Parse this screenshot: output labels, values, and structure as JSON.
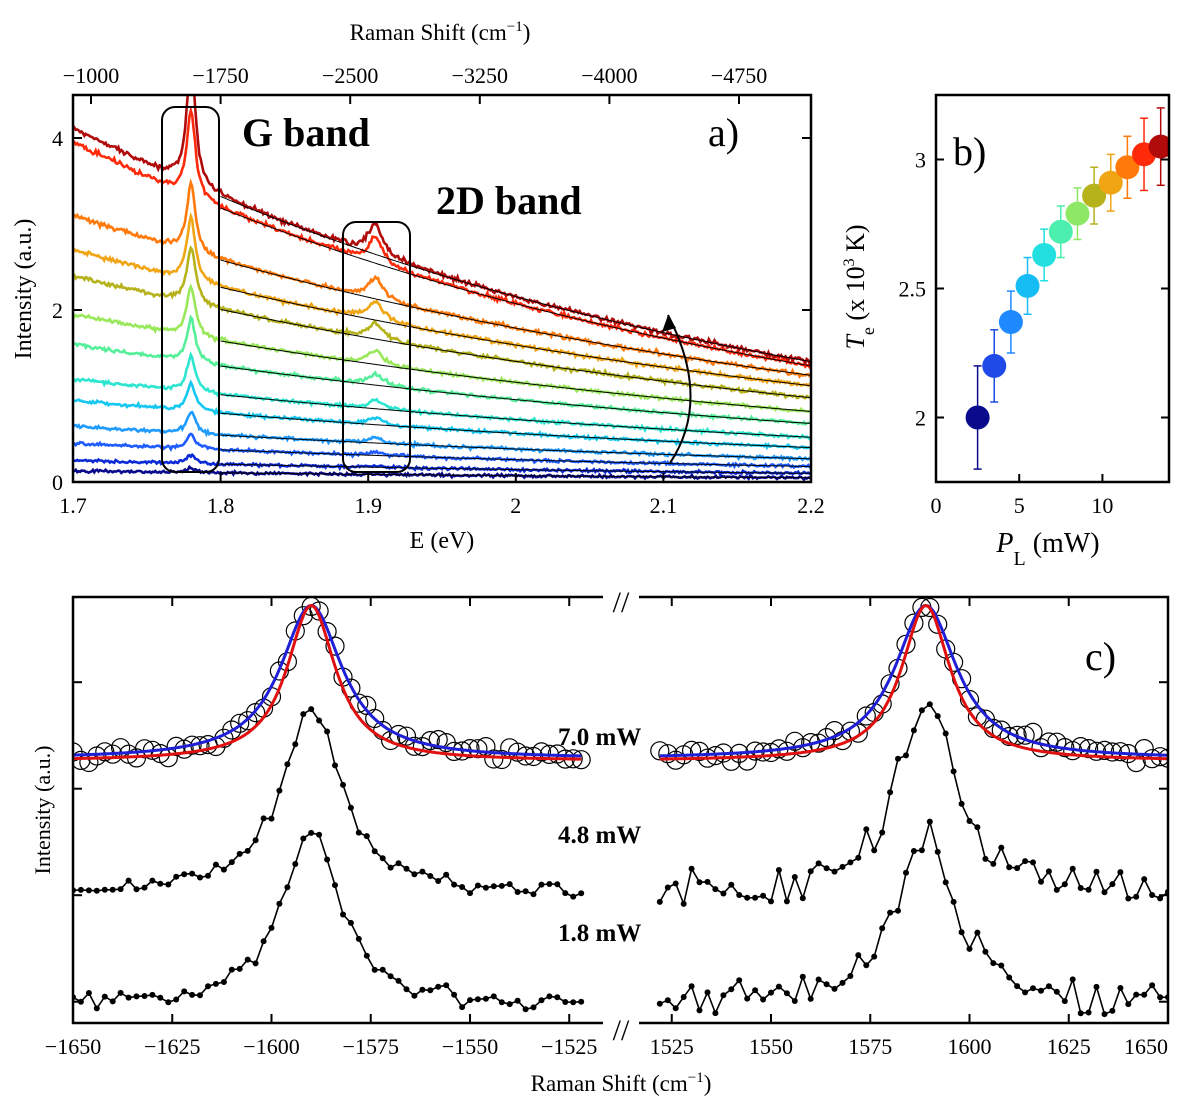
{
  "chart_data": [
    {
      "id": "a",
      "type": "line",
      "panel_label": "a)",
      "xlabel": "E (eV)",
      "ylabel": "Intensity (a.u.)",
      "top_xlabel": "Raman Shift (cm",
      "top_xlabel_sup": "−1",
      "top_xlabel_end": ")",
      "xlim": [
        1.7,
        2.2
      ],
      "ylim": [
        0,
        4.5
      ],
      "xticks": [
        1.7,
        1.8,
        1.9,
        2.0,
        2.1,
        2.2
      ],
      "xtick_labels": [
        "1.7",
        "1.8",
        "1.9",
        "2",
        "2.1",
        "2.2"
      ],
      "yticks": [
        0,
        2,
        4
      ],
      "ytick_labels": [
        "0",
        "2",
        "4"
      ],
      "top_ticks": [
        -1000,
        -1750,
        -2500,
        -3250,
        -4000,
        -4750
      ],
      "top_tick_labels": [
        "−1000",
        "−1750",
        "−2500",
        "−3250",
        "−4000",
        "−4750"
      ],
      "annotations": [
        "G band",
        "2D band"
      ],
      "g_band_center_ev": 1.78,
      "d2_band_center_ev": 1.905,
      "series_colors": [
        "#0a0a8c",
        "#0b2ad6",
        "#1f5cff",
        "#1f9bff",
        "#16c8f0",
        "#2ee6d0",
        "#55ef9a",
        "#99e85a",
        "#b5b21c",
        "#f0a514",
        "#ff7a0a",
        "#ff2a0a",
        "#b00a0a"
      ],
      "series_intensity_at_1_7": [
        0.13,
        0.25,
        0.45,
        0.65,
        0.95,
        1.2,
        1.6,
        1.95,
        2.4,
        2.7,
        3.1,
        3.95,
        4.12
      ],
      "series_intensity_at_2_2": [
        0.05,
        0.1,
        0.18,
        0.27,
        0.4,
        0.52,
        0.68,
        0.82,
        0.98,
        1.12,
        1.24,
        1.35,
        1.4
      ],
      "g_peak_height": [
        0.05,
        0.1,
        0.17,
        0.25,
        0.33,
        0.42,
        0.5,
        0.58,
        0.66,
        0.73,
        0.8,
        1.0,
        1.45
      ],
      "d2_peak_height": [
        0.0,
        0.02,
        0.04,
        0.06,
        0.08,
        0.1,
        0.13,
        0.16,
        0.19,
        0.22,
        0.25,
        0.3,
        0.35
      ]
    },
    {
      "id": "b",
      "type": "scatter",
      "panel_label": "b)",
      "xlabel_italic": "P",
      "xlabel_sub": "L",
      "xlabel_rest": " (mW)",
      "ylabel_italic": "T",
      "ylabel_sub": "e",
      "ylabel_rest": " (x 10",
      "ylabel_sup": "3",
      "ylabel_end": " K)",
      "xlim": [
        0,
        14
      ],
      "ylim": [
        1.75,
        3.25
      ],
      "xticks": [
        0,
        5,
        10
      ],
      "xtick_labels": [
        "0",
        "5",
        "10"
      ],
      "yticks": [
        2,
        2.5,
        3
      ],
      "ytick_labels": [
        "2",
        "2.5",
        "3"
      ],
      "x": [
        2.5,
        3.5,
        4.5,
        5.5,
        6.5,
        7.5,
        8.5,
        9.5,
        10.5,
        11.5,
        12.5,
        13.5
      ],
      "y": [
        2.0,
        2.2,
        2.37,
        2.51,
        2.63,
        2.72,
        2.79,
        2.86,
        2.91,
        2.97,
        3.02,
        3.05
      ],
      "err": [
        0.2,
        0.14,
        0.12,
        0.11,
        0.1,
        0.1,
        0.1,
        0.11,
        0.11,
        0.12,
        0.14,
        0.15
      ],
      "colors": [
        "#0a0a8c",
        "#1f4ae8",
        "#1f8aff",
        "#16bdf5",
        "#22dfe0",
        "#4cefae",
        "#8de866",
        "#b5b21c",
        "#f0a514",
        "#ff7a0a",
        "#ff2a0a",
        "#b00a0a"
      ]
    },
    {
      "id": "c",
      "type": "line",
      "panel_label": "c)",
      "xlabel": "Raman Shift (cm",
      "xlabel_sup": "−1",
      "xlabel_end": ")",
      "ylabel": "Intensity (a.u.)",
      "break_mark": "//",
      "left_xlim": [
        -1650,
        -1517
      ],
      "right_xlim": [
        1517,
        1650
      ],
      "left_xticks": [
        -1650,
        -1625,
        -1600,
        -1575,
        -1550,
        -1525
      ],
      "left_xtick_labels": [
        "−1650",
        "−1625",
        "−1600",
        "−1575",
        "−1550",
        "−1525"
      ],
      "right_xticks": [
        1525,
        1550,
        1575,
        1600,
        1625,
        1650
      ],
      "right_xtick_labels": [
        "1525",
        "1550",
        "1575",
        "1600",
        "1625",
        "1650"
      ],
      "power_labels": [
        "7.0 mW",
        "4.8 mW",
        "1.8 mW"
      ],
      "fit_colors": {
        "fit_blue": "#1f1fd6",
        "fit_red": "#e01010"
      },
      "left_peak_center": -1590,
      "right_peak_center": 1589,
      "series": [
        {
          "name": "7.0 mW",
          "marker": "open-circle",
          "baseline": 0.62,
          "peak": 0.98
        },
        {
          "name": "4.8 mW",
          "marker": "dot",
          "baseline": 0.3,
          "peak": 0.74
        },
        {
          "name": "1.8 mW",
          "marker": "dot",
          "baseline": 0.04,
          "peak": 0.45
        }
      ]
    }
  ]
}
